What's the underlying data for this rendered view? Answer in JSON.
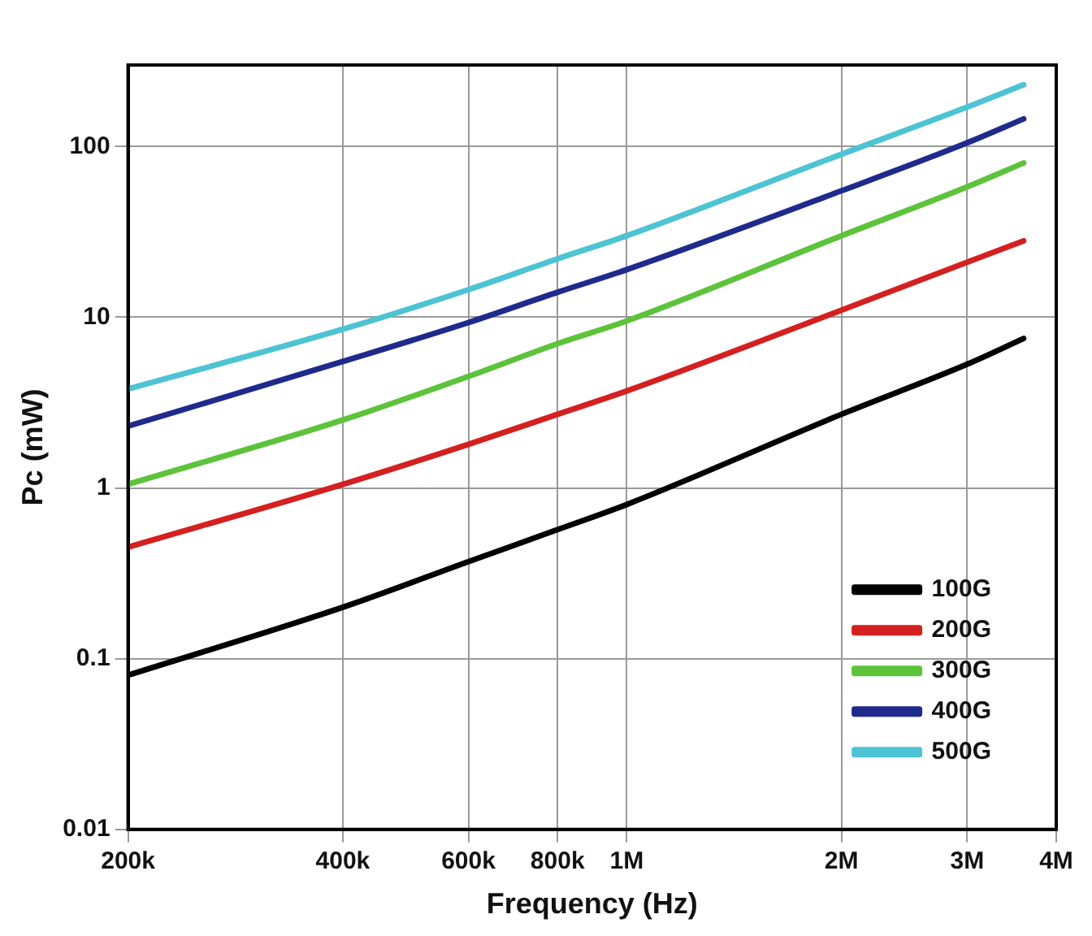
{
  "chart_data": {
    "type": "line",
    "xlabel": "Frequency (Hz)",
    "ylabel": "Pc (mW)",
    "log": "xy",
    "grid": true,
    "legend": "bottom right",
    "marker": "none",
    "line_style": "solid",
    "x": [
      200000,
      400000,
      600000,
      800000,
      1000000,
      2000000,
      3000000,
      3600000
    ],
    "xlim": [
      200000,
      4000000
    ],
    "xticks": [
      {
        "value": 200000,
        "label": "200k"
      },
      {
        "value": 400000,
        "label": "400k"
      },
      {
        "value": 600000,
        "label": "600k"
      },
      {
        "value": 800000,
        "label": "800k"
      },
      {
        "value": 1000000,
        "label": "1M"
      },
      {
        "value": 2000000,
        "label": "2M"
      },
      {
        "value": 3000000,
        "label": "3M"
      },
      {
        "value": 4000000,
        "label": "4M"
      }
    ],
    "ylim": [
      0.01,
      300
    ],
    "yticks": [
      0.01,
      0.1,
      1,
      10,
      100
    ],
    "series": [
      {
        "name": "100G",
        "color": "#000000",
        "values": [
          0.08,
          0.2,
          0.37,
          0.57,
          0.8,
          2.7,
          5.3,
          7.5
        ]
      },
      {
        "name": "200G",
        "color": "#d42020",
        "values": [
          0.45,
          1.05,
          1.8,
          2.7,
          3.7,
          11,
          21,
          28
        ]
      },
      {
        "name": "300G",
        "color": "#5cc33a",
        "values": [
          1.05,
          2.5,
          4.5,
          7,
          9.5,
          30,
          58,
          80
        ]
      },
      {
        "name": "400G",
        "color": "#1f2a8c",
        "values": [
          2.3,
          5.5,
          9.3,
          14,
          19,
          55,
          105,
          145
        ]
      },
      {
        "name": "500G",
        "color": "#4dc3d3",
        "values": [
          3.8,
          8.5,
          14.5,
          22,
          30,
          90,
          170,
          230
        ]
      }
    ]
  }
}
